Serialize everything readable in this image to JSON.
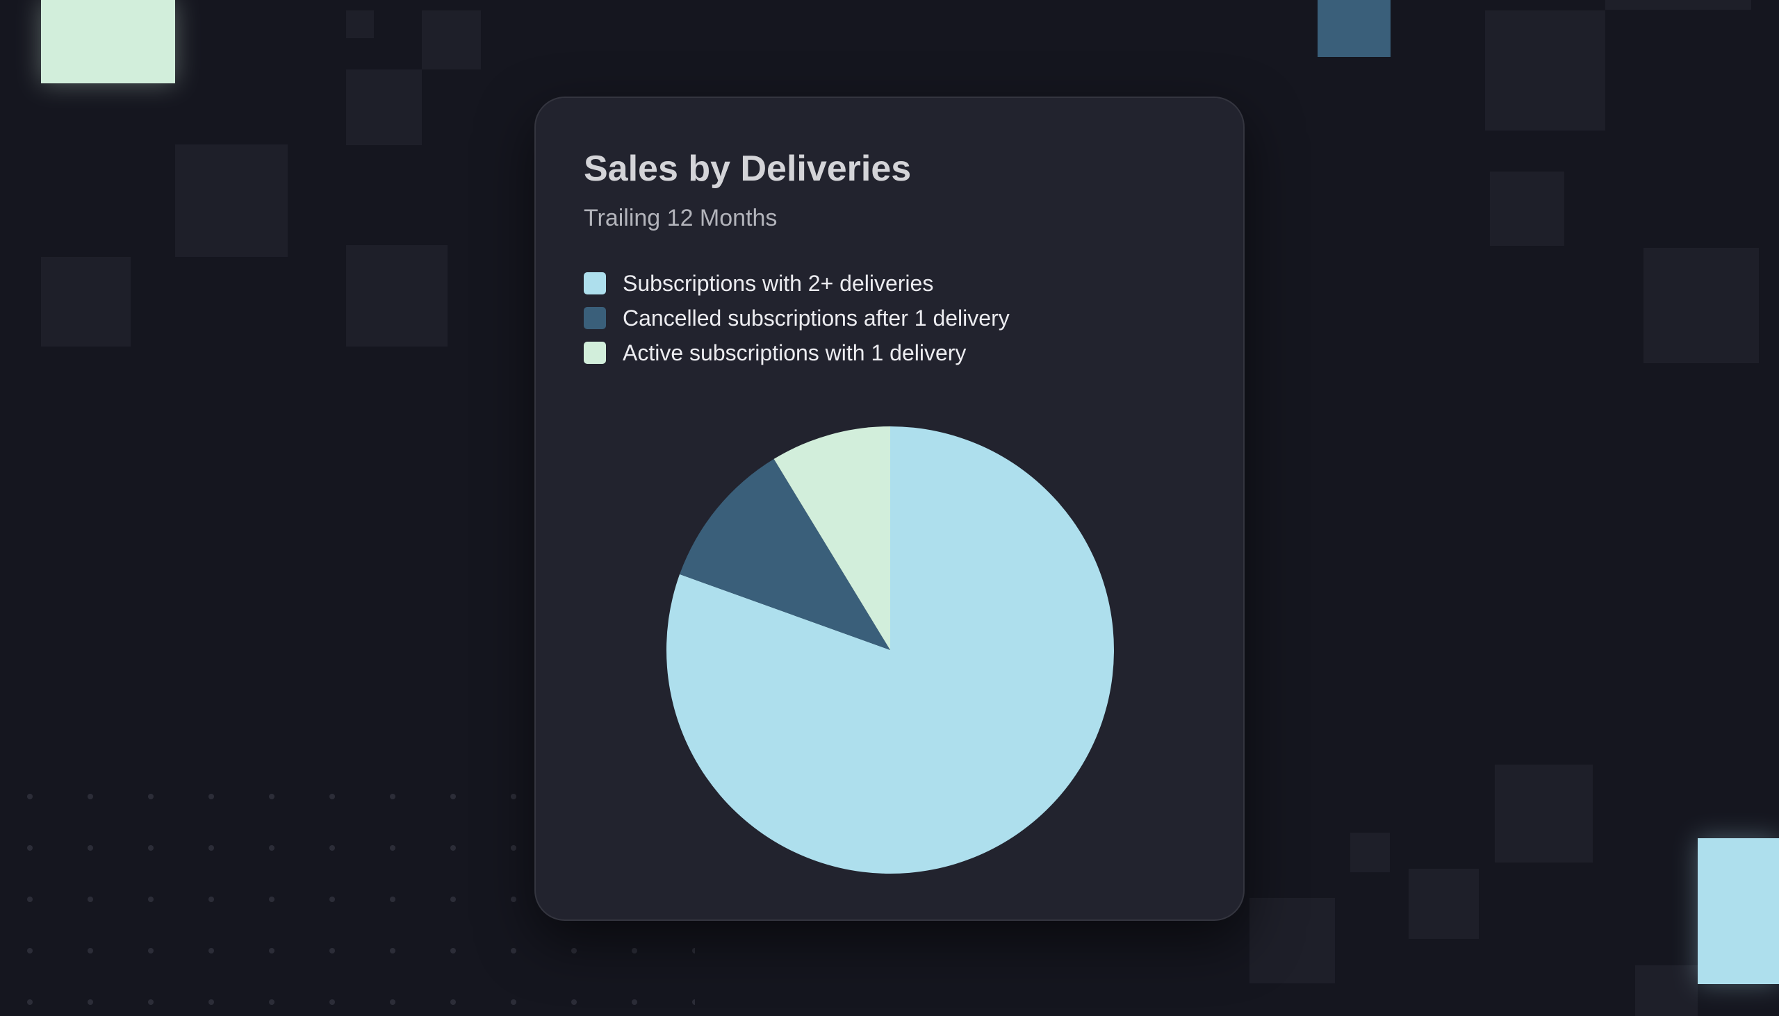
{
  "chart_data": {
    "type": "pie",
    "title": "Sales by Deliveries",
    "subtitle": "Trailing 12 Months",
    "categories": [
      "Subscriptions with 2+ deliveries",
      "Cancelled subscriptions after 1 delivery",
      "Active subscriptions with 1 delivery"
    ],
    "values": [
      80.5,
      10.8,
      8.7
    ],
    "colors": [
      "#aedfed",
      "#3a5f7a",
      "#d2eedb"
    ],
    "legend": "top-left"
  }
}
